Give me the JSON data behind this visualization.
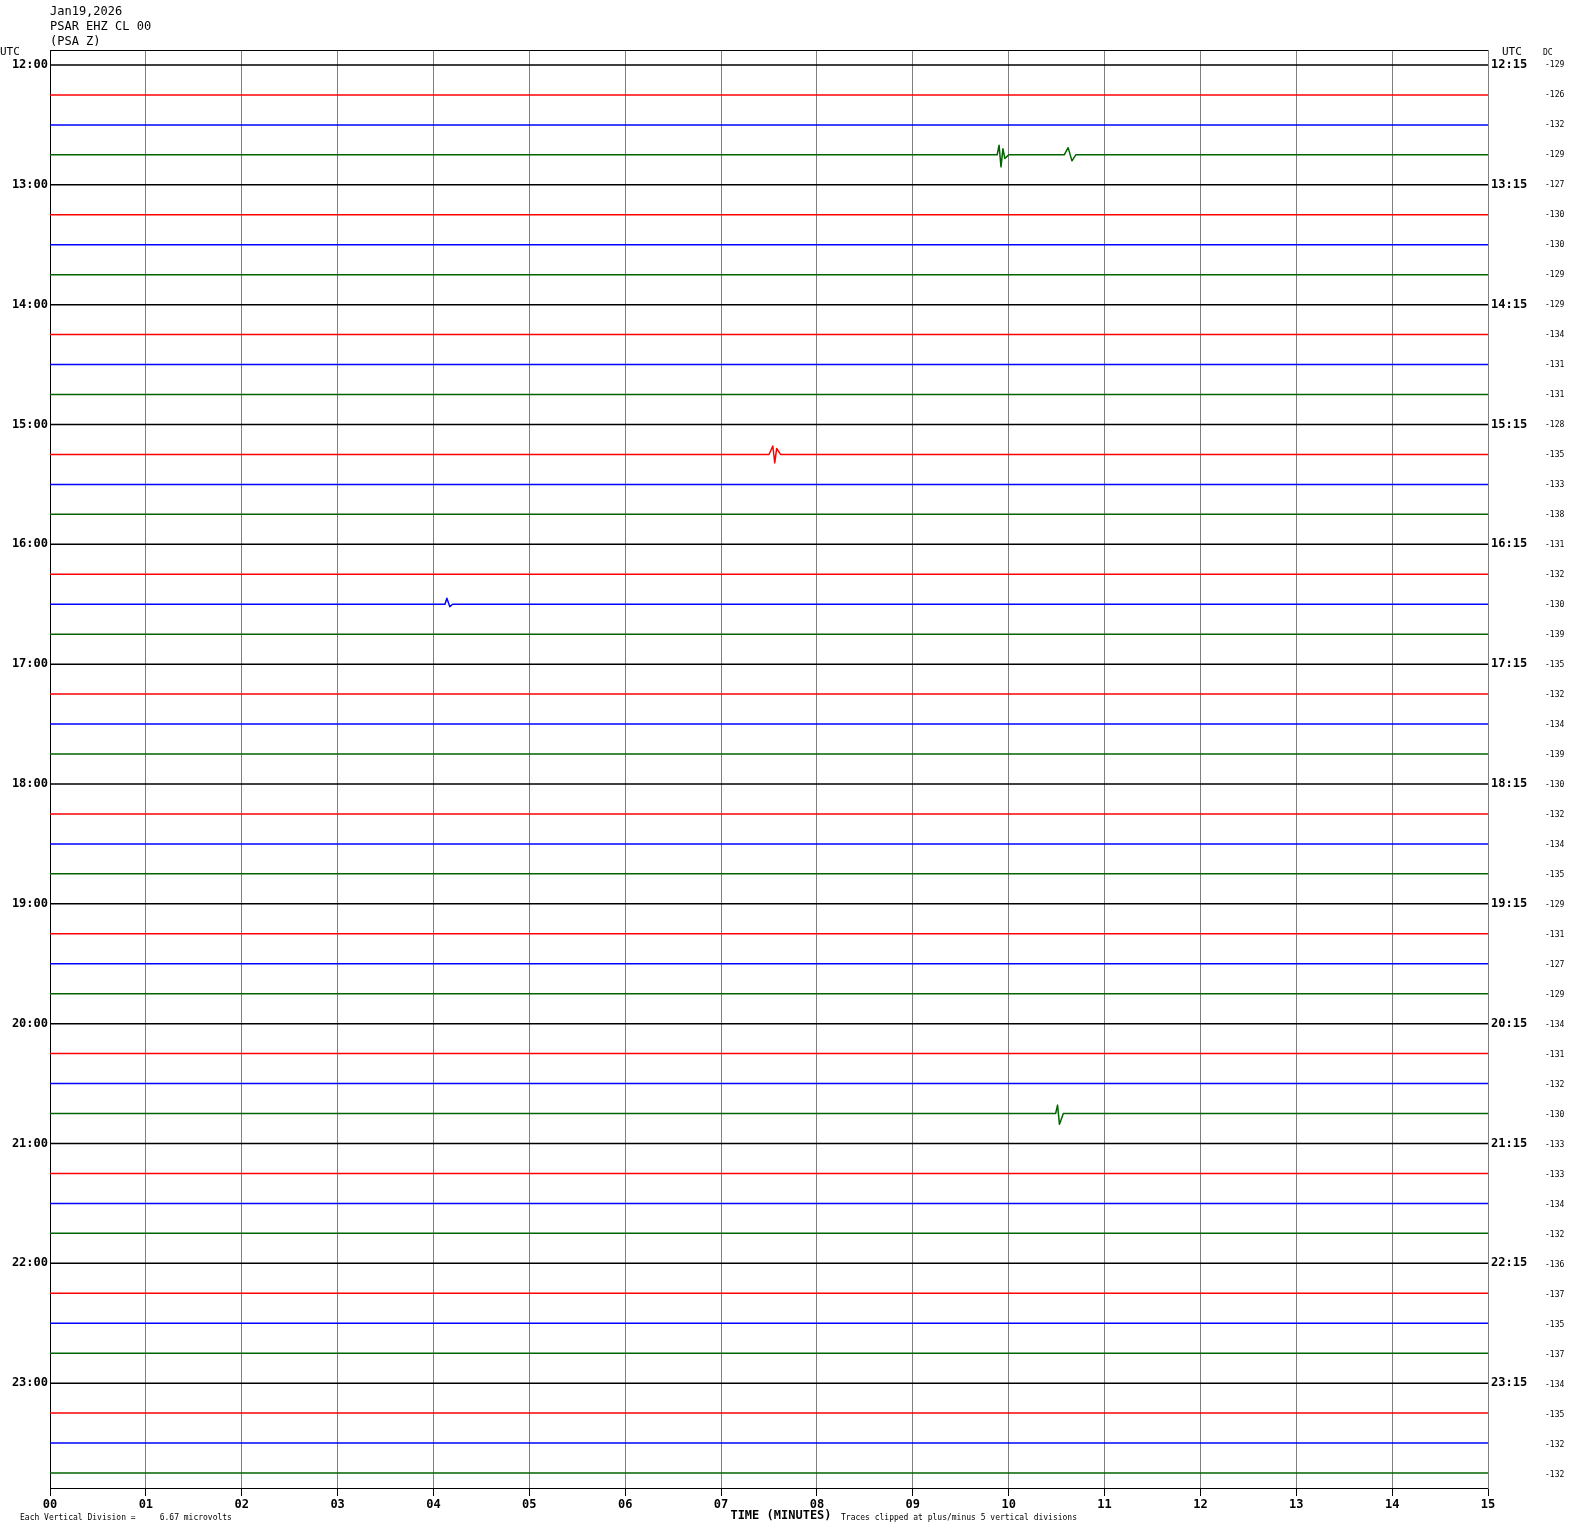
{
  "chart_data": {
    "type": "line",
    "title": "Jan19,2026",
    "subtitle": "PSAR EHZ CL 00",
    "xlabel": "TIME (MINUTES)",
    "ylabel": "UTC",
    "y2label": "UTC",
    "annotations": [
      "(PSA Z)",
      "DC",
      "Each Vertical Division =     6.67 microvolts",
      "Traces clipped at plus/minus 5 vertical divisions",
      "-129",
      "-126",
      "-132",
      "-129",
      "-127",
      "-130",
      "-130",
      "-129",
      "-129",
      "-134",
      "-131",
      "-131",
      "-128",
      "-135",
      "-133",
      "-138",
      "-131",
      "-132",
      "-130",
      "-139",
      "-135",
      "-132",
      "-134",
      "-139",
      "-130",
      "-132",
      "-134",
      "-135",
      "-129",
      "-131",
      "-127",
      "-129",
      "-134",
      "-131",
      "-132",
      "-130",
      "-133",
      "-133",
      "-134",
      "-132",
      "-136",
      "-137",
      "-135",
      "-137",
      "-134",
      "-135",
      "-132",
      "-132"
    ],
    "xlim": [
      0,
      15
    ],
    "xticks": [
      {
        "value": 0,
        "label": "00"
      },
      {
        "value": 1,
        "label": "01"
      },
      {
        "value": 2,
        "label": "02"
      },
      {
        "value": 3,
        "label": "03"
      },
      {
        "value": 4,
        "label": "04"
      },
      {
        "value": 5,
        "label": "05"
      },
      {
        "value": 6,
        "label": "06"
      },
      {
        "value": 7,
        "label": "07"
      },
      {
        "value": 8,
        "label": "08"
      },
      {
        "value": 9,
        "label": "09"
      },
      {
        "value": 10,
        "label": "10"
      },
      {
        "value": 11,
        "label": "11"
      },
      {
        "value": 12,
        "label": "12"
      },
      {
        "value": 13,
        "label": "13"
      },
      {
        "value": 14,
        "label": "14"
      },
      {
        "value": 15,
        "label": "15"
      }
    ],
    "ylim": [
      23.875,
      11.875
    ],
    "yticks": [
      {
        "value": 12,
        "label": "12:00"
      },
      {
        "value": 13,
        "label": "13:00"
      },
      {
        "value": 14,
        "label": "14:00"
      },
      {
        "value": 15,
        "label": "15:00"
      },
      {
        "value": 16,
        "label": "16:00"
      },
      {
        "value": 17,
        "label": "17:00"
      },
      {
        "value": 18,
        "label": "18:00"
      },
      {
        "value": 19,
        "label": "19:00"
      },
      {
        "value": 20,
        "label": "20:00"
      },
      {
        "value": 21,
        "label": "21:00"
      },
      {
        "value": 22,
        "label": "22:00"
      },
      {
        "value": 23,
        "label": "23:00"
      }
    ],
    "y2lim": [
      24.125,
      12.125
    ],
    "y2ticks": [
      {
        "value": 12.25,
        "label": "12:15"
      },
      {
        "value": 13.25,
        "label": "13:15"
      },
      {
        "value": 14.25,
        "label": "14:15"
      },
      {
        "value": 15.25,
        "label": "15:15"
      },
      {
        "value": 16.25,
        "label": "16:15"
      },
      {
        "value": 17.25,
        "label": "17:15"
      },
      {
        "value": 18.25,
        "label": "18:15"
      },
      {
        "value": 19.25,
        "label": "19:15"
      },
      {
        "value": 20.25,
        "label": "20:15"
      },
      {
        "value": 21.25,
        "label": "21:15"
      },
      {
        "value": 22.25,
        "label": "22:15"
      },
      {
        "value": 23.25,
        "label": "23:15"
      }
    ],
    "grid": "x",
    "legend": false,
    "marker": "none",
    "line_style": "solid",
    "series": [
      {
        "color": "#000000",
        "x": [
          0,
          15
        ],
        "values": [
          12,
          12
        ]
      },
      {
        "color": "#ff0000",
        "x": [
          0,
          15
        ],
        "values": [
          12.25,
          12.25
        ]
      },
      {
        "color": "#0000ff",
        "x": [
          0,
          15
        ],
        "values": [
          12.5,
          12.5
        ]
      },
      {
        "color": "#006400",
        "x": [
          0,
          9.88,
          9.9,
          9.92,
          9.94,
          9.96,
          10,
          10.58,
          10.62,
          10.66,
          10.7,
          15
        ],
        "values": [
          12.75,
          12.75,
          12.67,
          12.85,
          12.7,
          12.78,
          12.75,
          12.75,
          12.69,
          12.8,
          12.75,
          12.75
        ]
      },
      {
        "color": "#000000",
        "x": [
          0,
          15
        ],
        "values": [
          13,
          13
        ]
      },
      {
        "color": "#ff0000",
        "x": [
          0,
          15
        ],
        "values": [
          13.25,
          13.25
        ]
      },
      {
        "color": "#0000ff",
        "x": [
          0,
          15
        ],
        "values": [
          13.5,
          13.5
        ]
      },
      {
        "color": "#006400",
        "x": [
          0,
          15
        ],
        "values": [
          13.75,
          13.75
        ]
      },
      {
        "color": "#000000",
        "x": [
          0,
          15
        ],
        "values": [
          14,
          14
        ]
      },
      {
        "color": "#ff0000",
        "x": [
          0,
          15
        ],
        "values": [
          14.25,
          14.25
        ]
      },
      {
        "color": "#0000ff",
        "x": [
          0,
          15
        ],
        "values": [
          14.5,
          14.5
        ]
      },
      {
        "color": "#006400",
        "x": [
          0,
          15
        ],
        "values": [
          14.75,
          14.75
        ]
      },
      {
        "color": "#000000",
        "x": [
          0,
          15
        ],
        "values": [
          15,
          15
        ]
      },
      {
        "color": "#ff0000",
        "x": [
          0,
          7.5,
          7.54,
          7.56,
          7.58,
          7.62,
          15
        ],
        "values": [
          15.25,
          15.25,
          15.18,
          15.32,
          15.2,
          15.25,
          15.25
        ]
      },
      {
        "color": "#0000ff",
        "x": [
          0,
          15
        ],
        "values": [
          15.5,
          15.5
        ]
      },
      {
        "color": "#006400",
        "x": [
          0,
          15
        ],
        "values": [
          15.75,
          15.75
        ]
      },
      {
        "color": "#000000",
        "x": [
          0,
          15
        ],
        "values": [
          16,
          16
        ]
      },
      {
        "color": "#ff0000",
        "x": [
          0,
          15
        ],
        "values": [
          16.25,
          16.25
        ]
      },
      {
        "color": "#0000ff",
        "x": [
          0,
          4.12,
          4.14,
          4.17,
          4.2,
          15
        ],
        "values": [
          16.5,
          16.5,
          16.45,
          16.52,
          16.5,
          16.5
        ]
      },
      {
        "color": "#006400",
        "x": [
          0,
          15
        ],
        "values": [
          16.75,
          16.75
        ]
      },
      {
        "color": "#000000",
        "x": [
          0,
          15
        ],
        "values": [
          17,
          17
        ]
      },
      {
        "color": "#ff0000",
        "x": [
          0,
          15
        ],
        "values": [
          17.25,
          17.25
        ]
      },
      {
        "color": "#0000ff",
        "x": [
          0,
          15
        ],
        "values": [
          17.5,
          17.5
        ]
      },
      {
        "color": "#006400",
        "x": [
          0,
          15
        ],
        "values": [
          17.75,
          17.75
        ]
      },
      {
        "color": "#000000",
        "x": [
          0,
          15
        ],
        "values": [
          18,
          18
        ]
      },
      {
        "color": "#ff0000",
        "x": [
          0,
          15
        ],
        "values": [
          18.25,
          18.25
        ]
      },
      {
        "color": "#0000ff",
        "x": [
          0,
          15
        ],
        "values": [
          18.5,
          18.5
        ]
      },
      {
        "color": "#006400",
        "x": [
          0,
          15
        ],
        "values": [
          18.75,
          18.75
        ]
      },
      {
        "color": "#000000",
        "x": [
          0,
          15
        ],
        "values": [
          19,
          19
        ]
      },
      {
        "color": "#ff0000",
        "x": [
          0,
          15
        ],
        "values": [
          19.25,
          19.25
        ]
      },
      {
        "color": "#0000ff",
        "x": [
          0,
          15
        ],
        "values": [
          19.5,
          19.5
        ]
      },
      {
        "color": "#006400",
        "x": [
          0,
          15
        ],
        "values": [
          19.75,
          19.75
        ]
      },
      {
        "color": "#000000",
        "x": [
          0,
          15
        ],
        "values": [
          20,
          20
        ]
      },
      {
        "color": "#ff0000",
        "x": [
          0,
          15
        ],
        "values": [
          20.25,
          20.25
        ]
      },
      {
        "color": "#0000ff",
        "x": [
          0,
          15
        ],
        "values": [
          20.5,
          20.5
        ]
      },
      {
        "color": "#006400",
        "x": [
          0,
          10.49,
          10.51,
          10.53,
          10.57,
          15
        ],
        "values": [
          20.75,
          20.75,
          20.68,
          20.84,
          20.75,
          20.75
        ]
      },
      {
        "color": "#000000",
        "x": [
          0,
          15
        ],
        "values": [
          21,
          21
        ]
      },
      {
        "color": "#ff0000",
        "x": [
          0,
          15
        ],
        "values": [
          21.25,
          21.25
        ]
      },
      {
        "color": "#0000ff",
        "x": [
          0,
          15
        ],
        "values": [
          21.5,
          21.5
        ]
      },
      {
        "color": "#006400",
        "x": [
          0,
          15
        ],
        "values": [
          21.75,
          21.75
        ]
      },
      {
        "color": "#000000",
        "x": [
          0,
          15
        ],
        "values": [
          22,
          22
        ]
      },
      {
        "color": "#ff0000",
        "x": [
          0,
          15
        ],
        "values": [
          22.25,
          22.25
        ]
      },
      {
        "color": "#0000ff",
        "x": [
          0,
          15
        ],
        "values": [
          22.5,
          22.5
        ]
      },
      {
        "color": "#006400",
        "x": [
          0,
          15
        ],
        "values": [
          22.75,
          22.75
        ]
      },
      {
        "color": "#000000",
        "x": [
          0,
          15
        ],
        "values": [
          23,
          23
        ]
      },
      {
        "color": "#ff0000",
        "x": [
          0,
          15
        ],
        "values": [
          23.25,
          23.25
        ]
      },
      {
        "color": "#0000ff",
        "x": [
          0,
          15
        ],
        "values": [
          23.5,
          23.5
        ]
      },
      {
        "color": "#006400",
        "x": [
          0,
          15
        ],
        "values": [
          23.75,
          23.75
        ]
      }
    ]
  }
}
